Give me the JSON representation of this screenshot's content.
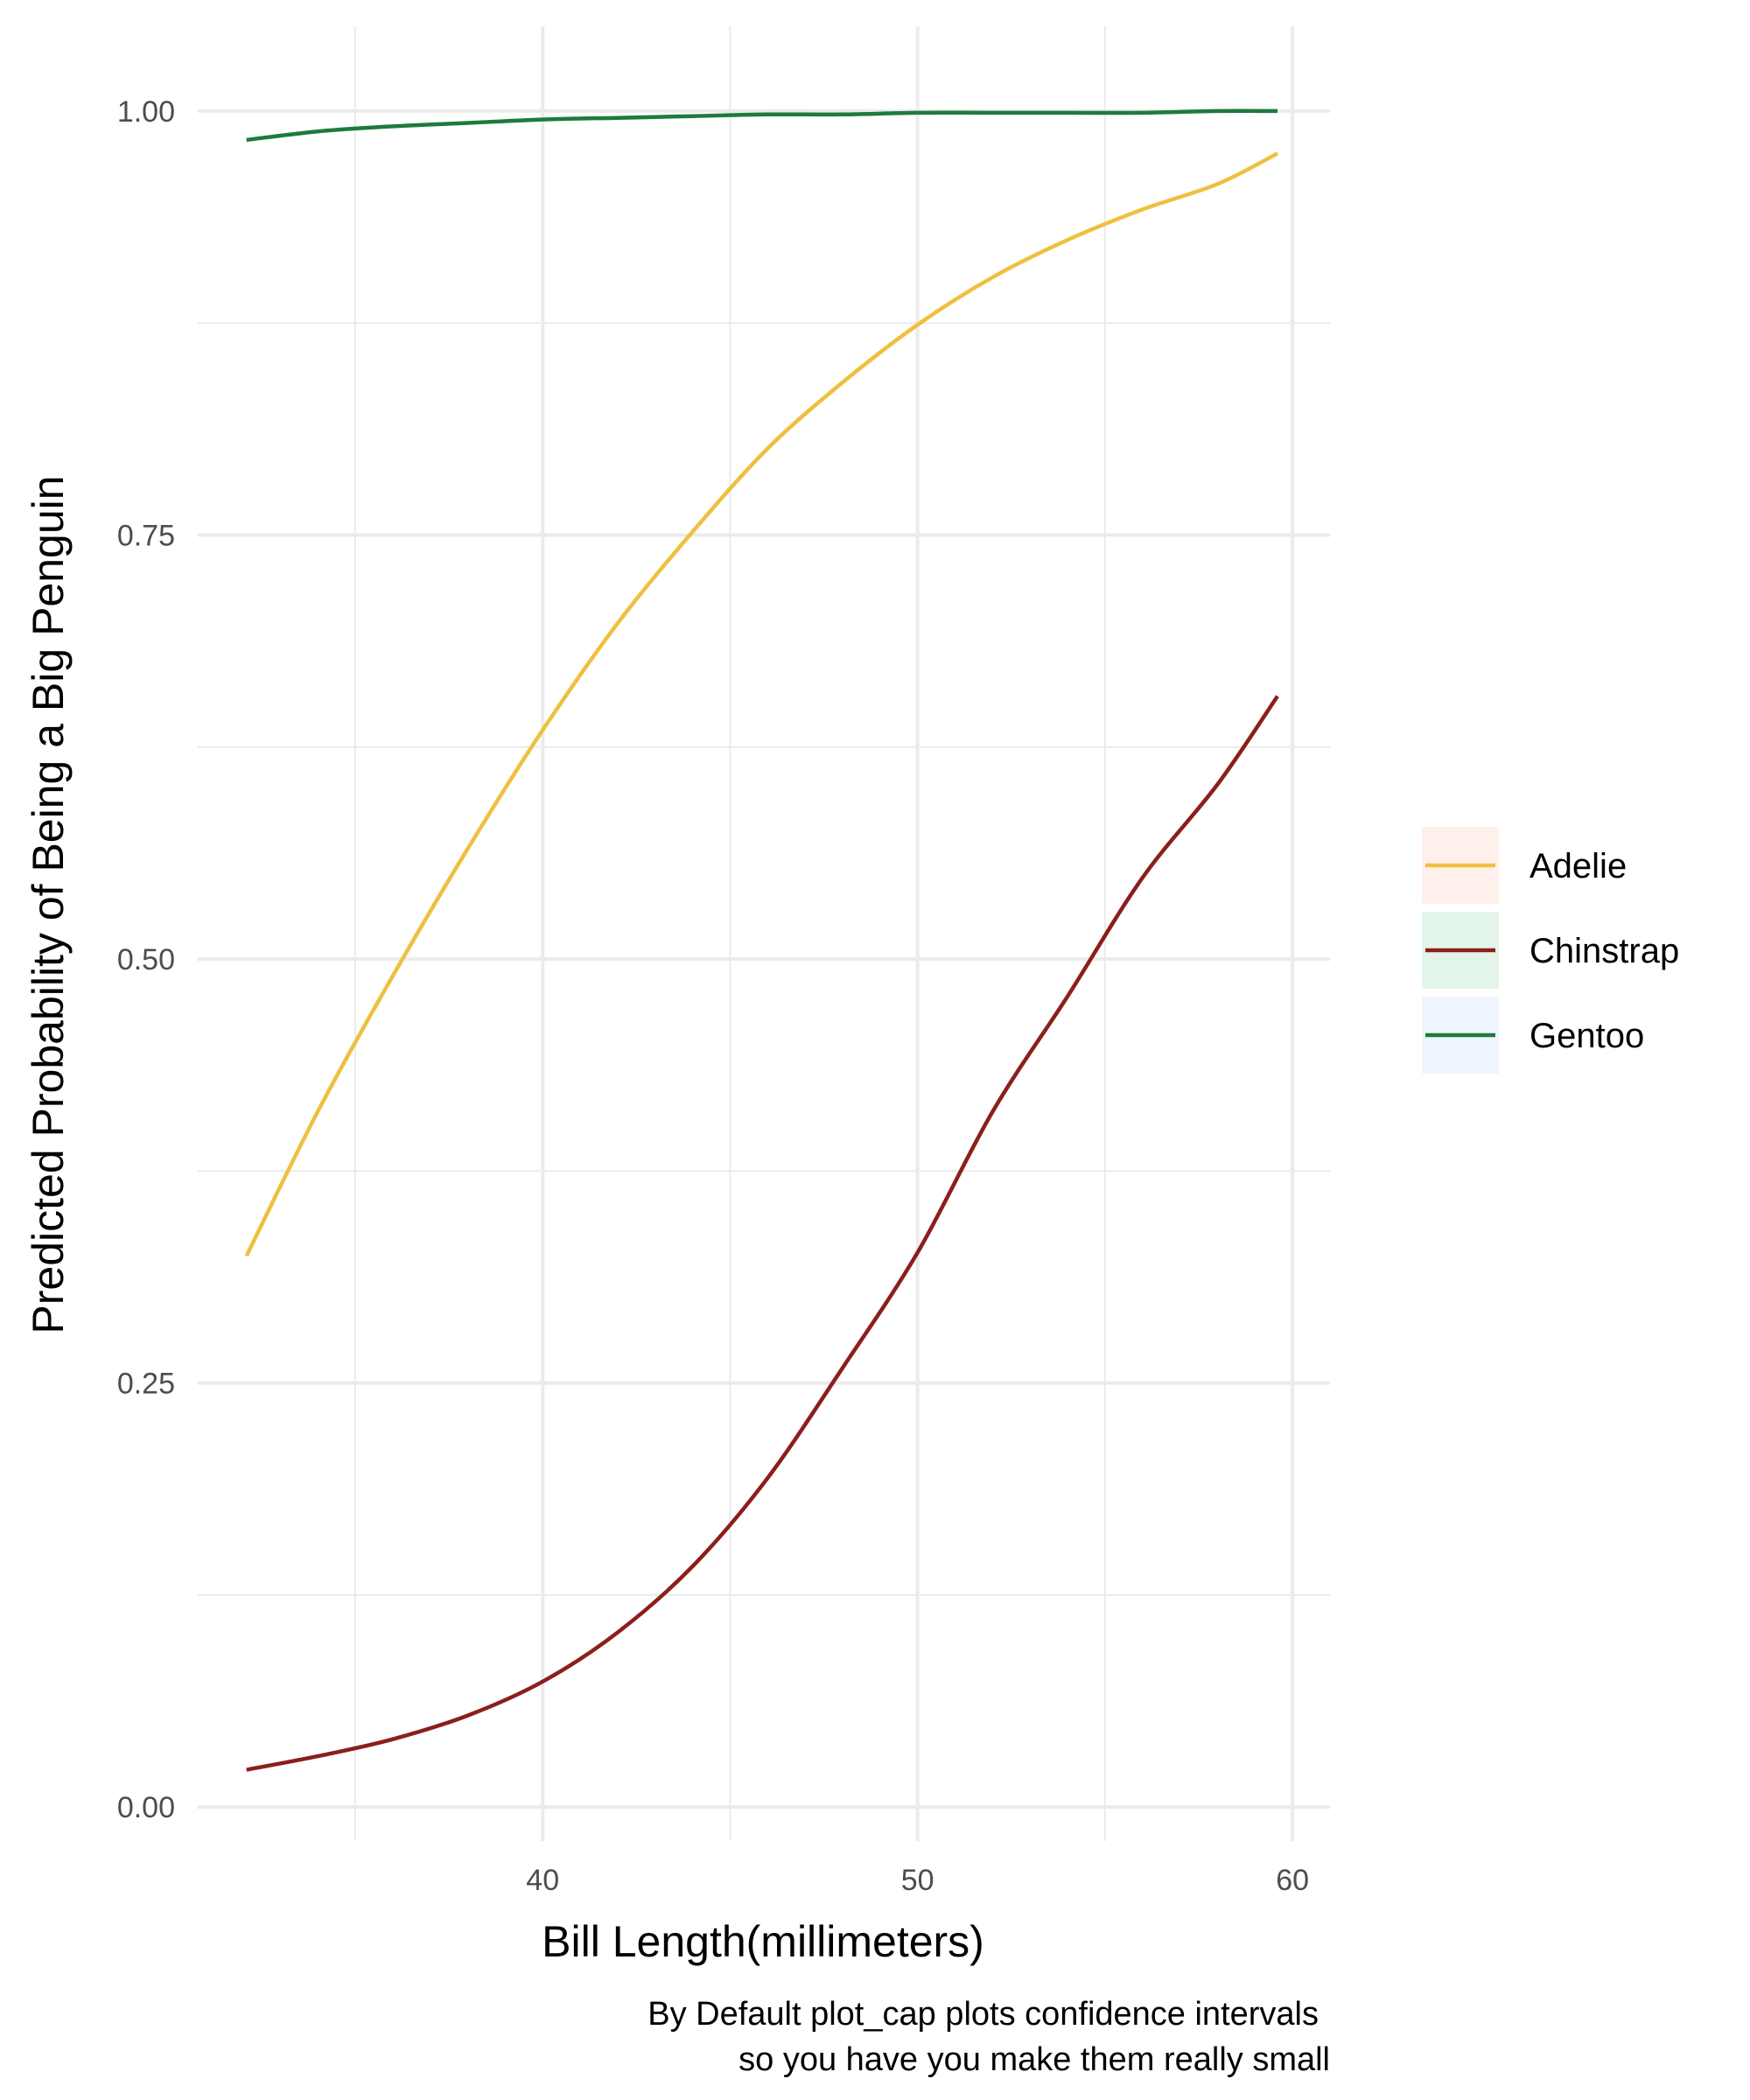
{
  "chart_data": {
    "type": "line",
    "title": "",
    "xlabel": "Bill Length(millimeters)",
    "ylabel": "Predicted Probability of Being a Big Penguin",
    "caption": [
      "By Default plot_cap plots confidence intervals",
      "so you have you make them really small"
    ],
    "xlim": [
      30.8,
      61.0
    ],
    "ylim": [
      -0.02,
      1.05
    ],
    "x_ticks": [
      40,
      50,
      60
    ],
    "x_tick_labels": [
      "40",
      "50",
      "60"
    ],
    "y_ticks": [
      0,
      0.25,
      0.5,
      0.75,
      1.0
    ],
    "y_tick_labels": [
      "0.00",
      "0.25",
      "0.50",
      "0.75",
      "1.00"
    ],
    "grid": true,
    "legend_position": "right",
    "x": [
      32.1,
      34,
      36,
      38,
      40,
      42,
      44,
      46,
      48,
      50,
      52,
      54,
      56,
      58,
      59.6
    ],
    "series": [
      {
        "name": "Adelie",
        "color": "#EFC03F",
        "fill": "#FFF0EC",
        "values": [
          0.325,
          0.41,
          0.49,
          0.565,
          0.635,
          0.698,
          0.752,
          0.801,
          0.84,
          0.874,
          0.902,
          0.924,
          0.942,
          0.957,
          0.975
        ]
      },
      {
        "name": "Chinstrap",
        "color": "#8B1F1B",
        "fill": "#E3F5EA",
        "values": [
          0.022,
          0.03,
          0.04,
          0.054,
          0.074,
          0.103,
          0.142,
          0.194,
          0.259,
          0.327,
          0.41,
          0.478,
          0.548,
          0.603,
          0.655
        ]
      },
      {
        "name": "Gentoo",
        "color": "#1E7A3E",
        "fill": "#EEF5FF",
        "values": [
          0.983,
          0.988,
          0.991,
          0.993,
          0.995,
          0.996,
          0.997,
          0.998,
          0.998,
          0.999,
          0.999,
          0.999,
          0.999,
          1.0,
          1.0
        ]
      }
    ]
  }
}
